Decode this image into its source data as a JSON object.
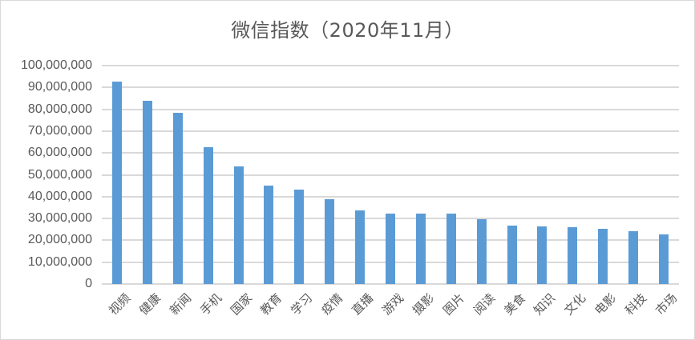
{
  "chart_data": {
    "type": "bar",
    "title": "微信指数（2020年11月）",
    "xlabel": "",
    "ylabel": "",
    "ylim": [
      0,
      100000000
    ],
    "grid": true,
    "legend": "none",
    "bar_color": "#5b9bd5",
    "yticks": [
      "0",
      "10,000,000",
      "20,000,000",
      "30,000,000",
      "40,000,000",
      "50,000,000",
      "60,000,000",
      "70,000,000",
      "80,000,000",
      "90,000,000",
      "100,000,000"
    ],
    "categories": [
      "视频",
      "健康",
      "新闻",
      "手机",
      "国家",
      "教育",
      "学习",
      "疫情",
      "直播",
      "游戏",
      "摄影",
      "图片",
      "阅读",
      "美食",
      "知识",
      "文化",
      "电影",
      "科技",
      "市场"
    ],
    "values": [
      92700000,
      84000000,
      78400000,
      62800000,
      54000000,
      45200000,
      43300000,
      38900000,
      33800000,
      32400000,
      32400000,
      32400000,
      29800000,
      26800000,
      26500000,
      26100000,
      25400000,
      24300000,
      22800000
    ]
  }
}
